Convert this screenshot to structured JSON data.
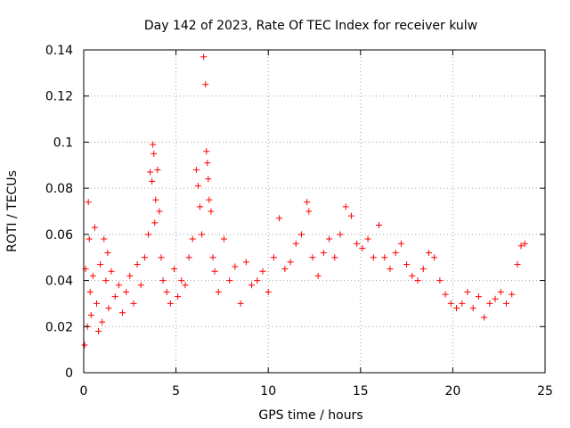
{
  "chart_data": {
    "type": "scatter",
    "title": "Day 142 of 2023, Rate Of TEC Index for receiver kulw",
    "xlabel": "GPS time / hours",
    "ylabel": "ROTI / TECUs",
    "xlim": [
      0,
      25
    ],
    "ylim": [
      0,
      0.14
    ],
    "x_ticks": [
      "0",
      "5",
      "10",
      "15",
      "20",
      "25"
    ],
    "y_ticks": [
      "0",
      "0.02",
      "0.04",
      "0.06",
      "0.08",
      "0.1",
      "0.12",
      "0.14"
    ],
    "grid": true,
    "marker": "plus",
    "color": "#ff0000",
    "series": [
      {
        "x": [
          0.05,
          0.1,
          0.2,
          0.25,
          0.3,
          0.35,
          0.4,
          0.5,
          0.6,
          0.7,
          0.8,
          0.9,
          1.0,
          1.1,
          1.2,
          1.3,
          1.35,
          1.5,
          1.7,
          1.9,
          2.1,
          2.3,
          2.5,
          2.7,
          2.9,
          3.1,
          3.3,
          3.5,
          3.6,
          3.7,
          3.75,
          3.8,
          3.85,
          3.9,
          4.0,
          4.1,
          4.2,
          4.3,
          4.5,
          4.7,
          4.9,
          5.1,
          5.3,
          5.5,
          5.7,
          5.9,
          6.1,
          6.2,
          6.3,
          6.4,
          6.5,
          6.6,
          6.65,
          6.7,
          6.75,
          6.8,
          6.9,
          7.0,
          7.1,
          7.3,
          7.6,
          7.9,
          8.2,
          8.5,
          8.8,
          9.1,
          9.4,
          9.7,
          10.0,
          10.3,
          10.6,
          10.9,
          11.2,
          11.5,
          11.8,
          12.1,
          12.2,
          12.4,
          12.7,
          13.0,
          13.3,
          13.6,
          13.9,
          14.2,
          14.5,
          14.8,
          15.1,
          15.4,
          15.7,
          16.0,
          16.3,
          16.6,
          16.9,
          17.2,
          17.5,
          17.8,
          18.1,
          18.4,
          18.7,
          19.0,
          19.3,
          19.6,
          19.9,
          20.2,
          20.5,
          20.8,
          21.1,
          21.4,
          21.7,
          22.0,
          22.3,
          22.6,
          22.9,
          23.2,
          23.5,
          23.7,
          23.9
        ],
        "y": [
          0.012,
          0.045,
          0.02,
          0.074,
          0.058,
          0.035,
          0.025,
          0.042,
          0.063,
          0.03,
          0.018,
          0.047,
          0.022,
          0.058,
          0.04,
          0.052,
          0.028,
          0.044,
          0.033,
          0.038,
          0.026,
          0.035,
          0.042,
          0.03,
          0.047,
          0.038,
          0.05,
          0.06,
          0.087,
          0.083,
          0.099,
          0.095,
          0.065,
          0.075,
          0.088,
          0.07,
          0.05,
          0.04,
          0.035,
          0.03,
          0.045,
          0.033,
          0.04,
          0.038,
          0.05,
          0.058,
          0.088,
          0.081,
          0.072,
          0.06,
          0.137,
          0.125,
          0.096,
          0.091,
          0.084,
          0.075,
          0.07,
          0.05,
          0.044,
          0.035,
          0.058,
          0.04,
          0.046,
          0.03,
          0.048,
          0.038,
          0.04,
          0.044,
          0.035,
          0.05,
          0.067,
          0.045,
          0.048,
          0.056,
          0.06,
          0.074,
          0.07,
          0.05,
          0.042,
          0.052,
          0.058,
          0.05,
          0.06,
          0.072,
          0.068,
          0.056,
          0.054,
          0.058,
          0.05,
          0.064,
          0.05,
          0.045,
          0.052,
          0.056,
          0.047,
          0.042,
          0.04,
          0.045,
          0.052,
          0.05,
          0.04,
          0.034,
          0.03,
          0.028,
          0.03,
          0.035,
          0.028,
          0.033,
          0.024,
          0.03,
          0.032,
          0.035,
          0.03,
          0.034,
          0.047,
          0.055,
          0.056
        ]
      }
    ]
  }
}
